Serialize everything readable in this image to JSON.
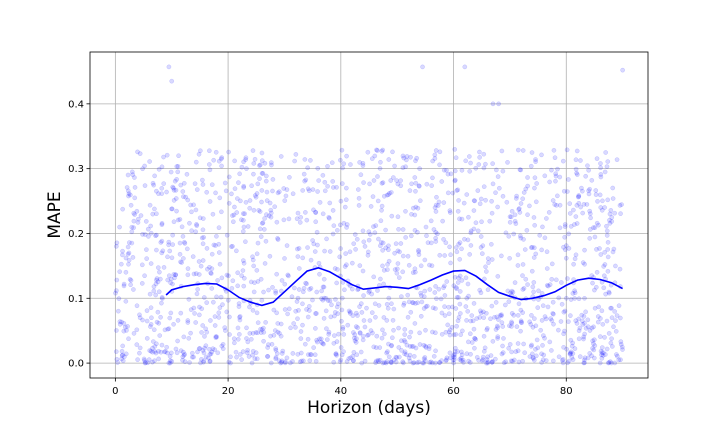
{
  "chart_data": {
    "type": "scatter",
    "title": "",
    "xlabel": "Horizon (days)",
    "ylabel": "MAPE",
    "xlim": [
      -4.5,
      94.5
    ],
    "ylim": [
      -0.023,
      0.48
    ],
    "xticks": [
      0,
      20,
      40,
      60,
      80
    ],
    "xtick_labels": [
      "0",
      "20",
      "40",
      "60",
      "80"
    ],
    "yticks": [
      0.0,
      0.1,
      0.2,
      0.3,
      0.4
    ],
    "ytick_labels": [
      "0.0",
      "0.1",
      "0.2",
      "0.3",
      "0.4"
    ],
    "grid": true,
    "legend": "none",
    "scatter_color": "#0000ff",
    "scatter_alpha": 0.15,
    "line_color": "#0000ff",
    "scatter_points": {
      "x_range": [
        0,
        90
      ],
      "y_range": [
        0,
        0.46
      ],
      "approx_count": 1800,
      "notable_outliers": [
        [
          9.5,
          0.457
        ],
        [
          10,
          0.435
        ],
        [
          54.5,
          0.457
        ],
        [
          62,
          0.457
        ],
        [
          67,
          0.4
        ],
        [
          68,
          0.4
        ],
        [
          90,
          0.452
        ]
      ]
    },
    "series": [
      {
        "type": "line",
        "x": [
          9,
          10,
          12,
          14,
          16,
          18,
          20,
          22,
          24,
          26,
          28,
          30,
          32,
          34,
          36,
          38,
          40,
          42,
          44,
          46,
          48,
          50,
          52,
          54,
          56,
          58,
          60,
          62,
          64,
          66,
          68,
          70,
          72,
          74,
          76,
          78,
          80,
          82,
          84,
          86,
          88,
          90
        ],
        "values": [
          0.105,
          0.113,
          0.118,
          0.121,
          0.123,
          0.122,
          0.113,
          0.101,
          0.094,
          0.089,
          0.094,
          0.11,
          0.126,
          0.142,
          0.147,
          0.141,
          0.131,
          0.121,
          0.114,
          0.116,
          0.118,
          0.117,
          0.115,
          0.121,
          0.128,
          0.136,
          0.142,
          0.143,
          0.134,
          0.121,
          0.109,
          0.103,
          0.098,
          0.1,
          0.104,
          0.11,
          0.12,
          0.128,
          0.131,
          0.129,
          0.124,
          0.115
        ]
      }
    ]
  }
}
